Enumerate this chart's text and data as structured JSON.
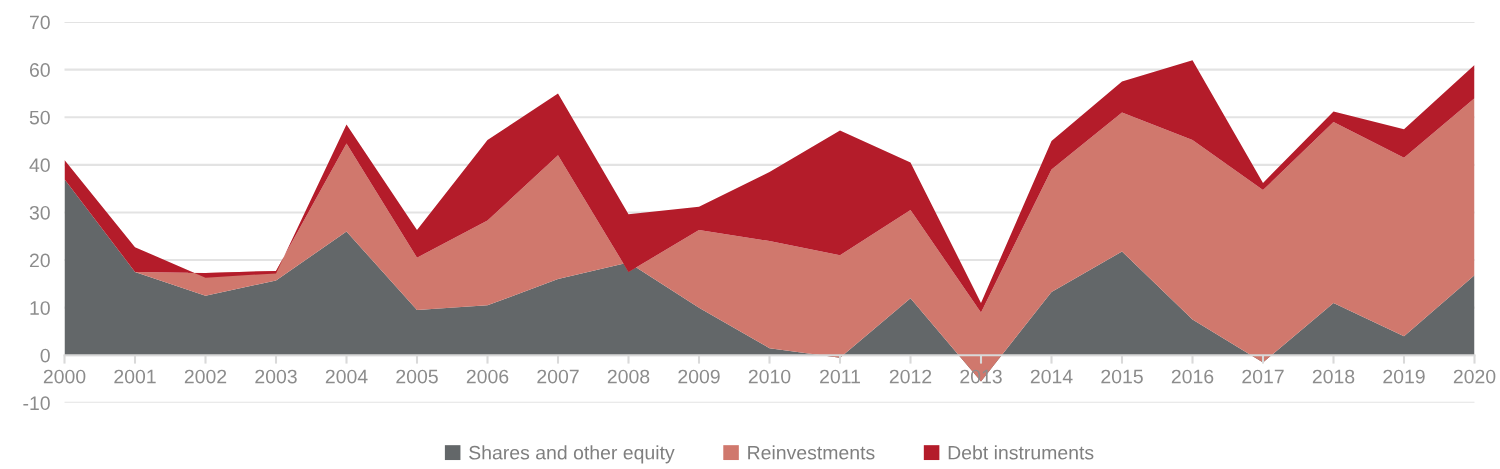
{
  "chart_data": {
    "type": "area",
    "stacked": true,
    "categories": [
      "2000",
      "2001",
      "2002",
      "2003",
      "2004",
      "2005",
      "2006",
      "2007",
      "2008",
      "2009",
      "2010",
      "2011",
      "2012",
      "2013",
      "2014",
      "2015",
      "2016",
      "2017",
      "2018",
      "2019",
      "2020"
    ],
    "series": [
      {
        "name": "Shares and other equity",
        "color": "#636769",
        "values": [
          37,
          17.5,
          12.5,
          15.7,
          26,
          9.5,
          10.5,
          16,
          19.5,
          10,
          1.5,
          -0.5,
          12,
          -5.5,
          13.3,
          21.8,
          7.5,
          -1.5,
          11,
          4,
          16.8
        ]
      },
      {
        "name": "Reinvestments",
        "color": "#d0786d",
        "values": [
          0,
          0,
          4.8,
          2,
          18.5,
          11,
          17.8,
          26,
          -2,
          16.3,
          22.5,
          21.5,
          18.5,
          14.5,
          25.7,
          29.2,
          37.7,
          36.2,
          38,
          37.5,
          37.2
        ]
      },
      {
        "name": "Debt instruments",
        "color": "#b41c2a",
        "values": [
          4,
          5.2,
          -1,
          -0.5,
          4,
          5.8,
          16.9,
          13,
          12.1,
          4.9,
          14.5,
          26.2,
          10,
          2,
          6,
          6.5,
          16.8,
          1.5,
          2.2,
          6,
          7
        ]
      }
    ],
    "ylim": [
      -10,
      70
    ],
    "yticks": [
      -10,
      0,
      10,
      20,
      30,
      40,
      50,
      60,
      70
    ],
    "grid": "y",
    "legend": "bottom"
  }
}
